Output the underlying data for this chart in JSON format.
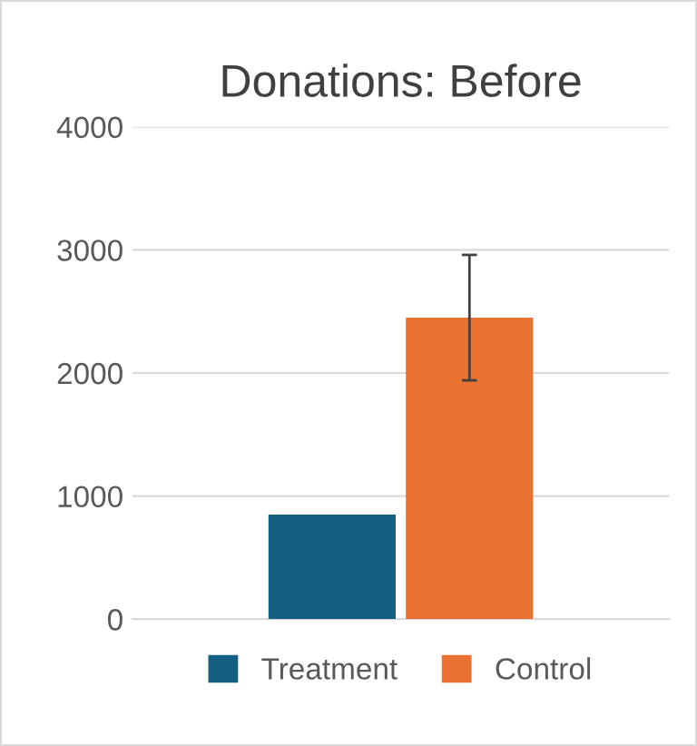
{
  "chart_data": {
    "type": "bar",
    "title": "Donations: Before",
    "categories": [
      null
    ],
    "series": [
      {
        "name": "Treatment",
        "color": "#156082",
        "values": [
          850
        ],
        "errors": [
          null
        ]
      },
      {
        "name": "Control",
        "color": "#e97132",
        "values": [
          2450
        ],
        "errors": [
          510
        ]
      }
    ],
    "ylim": [
      0,
      4000
    ],
    "yticks": [
      0,
      1000,
      2000,
      3000,
      4000
    ],
    "grid": "y",
    "legend": "bottom"
  }
}
